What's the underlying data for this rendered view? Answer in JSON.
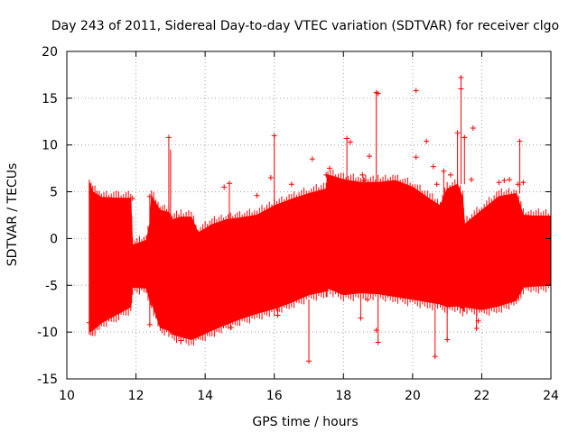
{
  "chart_data": {
    "type": "scatter",
    "title": "Day 243 of 2011, Sidereal Day-to-day VTEC variation (SDTVAR) for receiver clgo",
    "xlabel": "GPS time / hours",
    "ylabel": "SDTVAR / TECUs",
    "xlim": [
      10,
      24
    ],
    "ylim": [
      -15,
      20
    ],
    "grid": true,
    "x_ticks": [
      "10",
      "12",
      "14",
      "16",
      "18",
      "20",
      "22",
      "24"
    ],
    "y_ticks": [
      "-15",
      "-10",
      "-5",
      "0",
      "5",
      "10",
      "15",
      "20"
    ],
    "series_color": "#ff0000",
    "envelope": {
      "x": [
        10.65,
        10.75,
        11.0,
        11.5,
        11.85,
        11.9,
        12.3,
        12.4,
        12.45,
        12.7,
        12.95,
        13.05,
        13.3,
        13.6,
        13.8,
        14.2,
        14.6,
        15.0,
        15.5,
        16.0,
        16.5,
        17.0,
        17.5,
        17.55,
        18.0,
        18.5,
        19.0,
        19.5,
        20.0,
        20.5,
        20.8,
        21.0,
        21.3,
        21.45,
        21.5,
        22.0,
        22.5,
        23.0,
        23.2,
        23.5,
        24.0
      ],
      "upper": [
        6.0,
        5.0,
        4.4,
        4.3,
        4.3,
        -0.7,
        -0.2,
        1.5,
        4.5,
        3.0,
        2.8,
        2.0,
        2.3,
        2.3,
        0.6,
        1.5,
        2.0,
        2.2,
        2.5,
        3.5,
        4.2,
        4.8,
        5.3,
        6.8,
        6.3,
        6.0,
        6.0,
        6.2,
        5.5,
        4.2,
        3.5,
        5.3,
        5.8,
        4.3,
        1.5,
        3.0,
        4.5,
        4.8,
        2.5,
        2.4,
        2.4
      ],
      "lower": [
        -10.0,
        -9.8,
        -9.0,
        -8.0,
        -7.3,
        -5.2,
        -5.3,
        -6.5,
        -6.8,
        -9.5,
        -9.8,
        -10.2,
        -10.5,
        -10.8,
        -10.5,
        -9.8,
        -9.2,
        -8.6,
        -8.0,
        -7.5,
        -6.8,
        -6.0,
        -5.6,
        -5.3,
        -6.0,
        -5.8,
        -5.9,
        -6.2,
        -6.5,
        -6.8,
        -7.0,
        -7.3,
        -7.2,
        -7.5,
        -7.3,
        -7.6,
        -7.2,
        -6.6,
        -5.2,
        -5.1,
        -5.0
      ]
    },
    "outliers": [
      {
        "x": 10.65,
        "y": -9.0
      },
      {
        "x": 11.9,
        "y": 4.3
      },
      {
        "x": 12.4,
        "y": 4.5
      },
      {
        "x": 12.4,
        "y": -9.2
      },
      {
        "x": 12.95,
        "y": 10.8
      },
      {
        "x": 13.3,
        "y": -10.9
      },
      {
        "x": 14.55,
        "y": 5.5
      },
      {
        "x": 14.7,
        "y": 5.9
      },
      {
        "x": 14.75,
        "y": -9.5
      },
      {
        "x": 15.5,
        "y": 4.6
      },
      {
        "x": 15.9,
        "y": 6.5
      },
      {
        "x": 16.0,
        "y": 11.0
      },
      {
        "x": 16.1,
        "y": -8.2
      },
      {
        "x": 16.5,
        "y": 5.8
      },
      {
        "x": 16.9,
        "y": -5.6
      },
      {
        "x": 17.0,
        "y": -13.1
      },
      {
        "x": 17.1,
        "y": 8.5
      },
      {
        "x": 17.5,
        "y": 6.8
      },
      {
        "x": 17.6,
        "y": 7.5
      },
      {
        "x": 18.1,
        "y": 10.7
      },
      {
        "x": 18.2,
        "y": 10.3
      },
      {
        "x": 18.5,
        "y": -8.5
      },
      {
        "x": 18.55,
        "y": 6.8
      },
      {
        "x": 18.6,
        "y": 6.2
      },
      {
        "x": 18.7,
        "y": -6.5
      },
      {
        "x": 18.75,
        "y": 8.8
      },
      {
        "x": 18.95,
        "y": 15.6
      },
      {
        "x": 19.0,
        "y": 15.5
      },
      {
        "x": 19.0,
        "y": -11.1
      },
      {
        "x": 18.95,
        "y": -9.8
      },
      {
        "x": 20.1,
        "y": 15.8
      },
      {
        "x": 20.1,
        "y": 8.7
      },
      {
        "x": 20.4,
        "y": 10.4
      },
      {
        "x": 20.6,
        "y": 7.7
      },
      {
        "x": 20.65,
        "y": -12.6
      },
      {
        "x": 20.7,
        "y": 5.8
      },
      {
        "x": 20.9,
        "y": 7.2
      },
      {
        "x": 21.0,
        "y": -10.8
      },
      {
        "x": 21.1,
        "y": 6.8
      },
      {
        "x": 21.3,
        "y": 11.3
      },
      {
        "x": 21.4,
        "y": 17.2
      },
      {
        "x": 21.4,
        "y": 16.0
      },
      {
        "x": 21.5,
        "y": 10.8
      },
      {
        "x": 21.75,
        "y": 11.8
      },
      {
        "x": 21.7,
        "y": 6.3
      },
      {
        "x": 21.85,
        "y": -9.6
      },
      {
        "x": 21.9,
        "y": -8.8
      },
      {
        "x": 22.5,
        "y": 6.0
      },
      {
        "x": 22.65,
        "y": 6.2
      },
      {
        "x": 22.8,
        "y": 6.3
      },
      {
        "x": 23.05,
        "y": 5.8
      },
      {
        "x": 23.1,
        "y": 10.4
      },
      {
        "x": 23.2,
        "y": 6.0
      },
      {
        "x": 23.0,
        "y": -5.6
      }
    ],
    "spikes": [
      {
        "x": 12.95,
        "y0": 2.0,
        "y1": 10.8
      },
      {
        "x": 13.0,
        "y0": -10.0,
        "y1": 9.5
      },
      {
        "x": 16.0,
        "y0": 3.5,
        "y1": 11.0
      },
      {
        "x": 16.1,
        "y0": -8.2,
        "y1": -6.0
      },
      {
        "x": 17.0,
        "y0": -13.1,
        "y1": -6.5
      },
      {
        "x": 18.1,
        "y0": 6.3,
        "y1": 10.7
      },
      {
        "x": 18.95,
        "y0": 6.0,
        "y1": 15.6
      },
      {
        "x": 19.0,
        "y0": -11.1,
        "y1": -6.0
      },
      {
        "x": 18.5,
        "y0": -8.5,
        "y1": -6.0
      },
      {
        "x": 20.65,
        "y0": -12.6,
        "y1": -6.8
      },
      {
        "x": 21.0,
        "y0": -10.8,
        "y1": -7.3
      },
      {
        "x": 21.4,
        "y0": 5.8,
        "y1": 17.2
      },
      {
        "x": 21.5,
        "y0": 5.8,
        "y1": 10.8
      },
      {
        "x": 21.3,
        "y0": 5.8,
        "y1": 11.3
      },
      {
        "x": 23.1,
        "y0": 4.8,
        "y1": 10.4
      },
      {
        "x": 12.4,
        "y0": -9.2,
        "y1": 4.5
      },
      {
        "x": 20.9,
        "y0": 3.5,
        "y1": 7.2
      },
      {
        "x": 14.7,
        "y0": 2.0,
        "y1": 5.9
      },
      {
        "x": 21.85,
        "y0": -9.6,
        "y1": -7.5
      }
    ]
  }
}
